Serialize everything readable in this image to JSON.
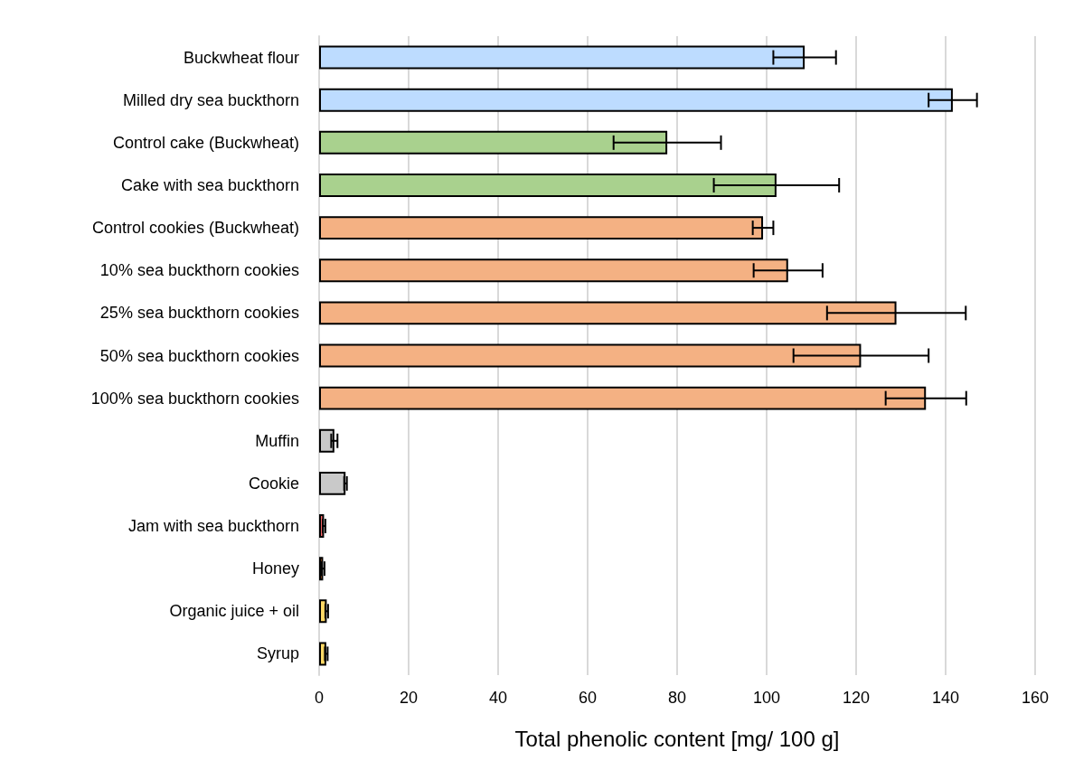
{
  "chart_data": {
    "type": "bar",
    "orientation": "horizontal",
    "xlabel": "Total phenolic content [mg/ 100 g]",
    "categories": [
      "Buckwheat flour",
      "Milled dry sea buckthorn",
      "Control cake (Buckwheat)",
      "Cake with sea buckthorn",
      "Control cookies (Buckwheat)",
      "10% sea buckthorn cookies",
      "25% sea buckthorn cookies",
      "50% sea buckthorn cookies",
      "100% sea buckthorn cookies",
      "Muffin",
      "Cookie",
      "Jam with sea buckthorn",
      "Honey",
      "Organic juice + oil",
      "Syrup"
    ],
    "values": [
      108.5,
      141.6,
      77.8,
      102.2,
      99.2,
      104.8,
      129,
      121.1,
      135.6,
      3.4,
      5.9,
      1.1,
      0.9,
      1.7,
      1.6
    ],
    "errors": [
      7,
      5.4,
      12,
      14,
      2.3,
      7.7,
      15.5,
      15.1,
      9,
      0.7,
      0.3,
      0.3,
      0.3,
      0.3,
      0.3
    ],
    "colors": [
      "#bddcff",
      "#bddcff",
      "#a9d18e",
      "#a9d18e",
      "#f4b183",
      "#f4b183",
      "#f4b183",
      "#f4b183",
      "#f4b183",
      "#c9c9c9",
      "#c9c9c9",
      "#ff6b6b",
      "#ed7d31",
      "#ffd966",
      "#ffd966"
    ],
    "xlim": [
      0,
      160
    ],
    "xticks": [
      0,
      20,
      40,
      60,
      80,
      100,
      120,
      140,
      160
    ],
    "grid": "x"
  }
}
